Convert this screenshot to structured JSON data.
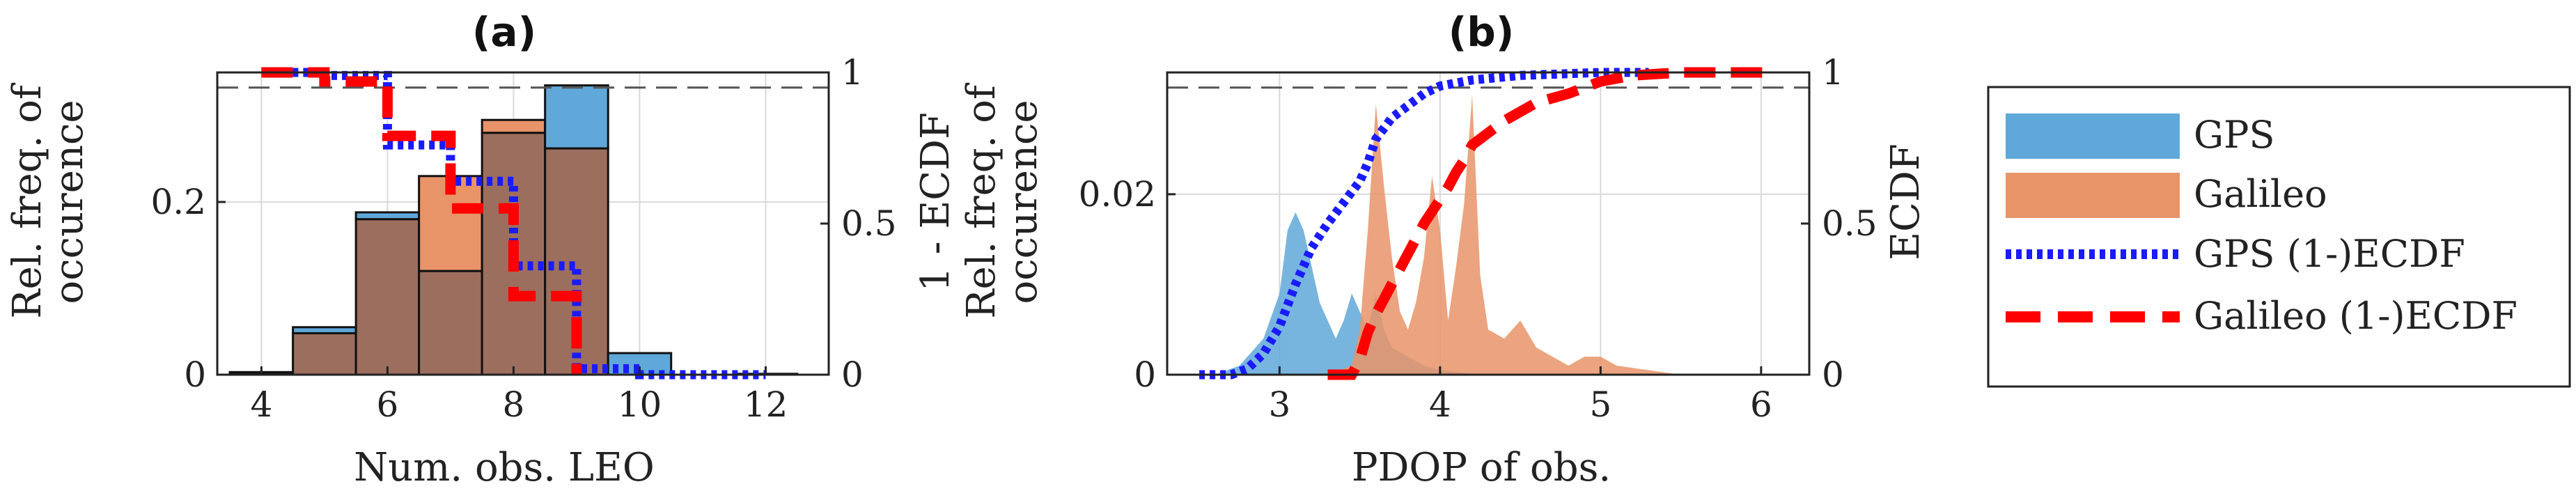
{
  "colors": {
    "gps": "#5fa8d9",
    "galileo": "#e89468",
    "overlap": "#9c6e5e",
    "gps_ecdf": "#1a1aff",
    "galileo_ecdf": "#ff0000"
  },
  "legend": {
    "items": [
      {
        "label": "GPS",
        "style": "patch-gps"
      },
      {
        "label": "Galileo",
        "style": "patch-galileo"
      },
      {
        "label": "GPS (1-)ECDF",
        "style": "line-gps"
      },
      {
        "label": "Galileo (1-)ECDF",
        "style": "line-galileo"
      }
    ]
  },
  "chart_data": [
    {
      "type": "bar",
      "title": "(a)",
      "xlabel": "Num. obs. LEO",
      "ylabel_left": [
        "Rel. freq. of",
        "occurence"
      ],
      "ylabel_right": "1 - ECDF",
      "xlim": [
        3.3,
        13
      ],
      "ylim": [
        0,
        0.35
      ],
      "ylim_right": [
        0,
        1
      ],
      "xticks": [
        4,
        6,
        8,
        10,
        12
      ],
      "yticks_left": [
        {
          "v": 0,
          "label": "0"
        },
        {
          "v": 0.2,
          "label": "0.2"
        }
      ],
      "yticks_right": [
        {
          "v": 0,
          "label": "0"
        },
        {
          "v": 0.5,
          "label": "0.5"
        },
        {
          "v": 1,
          "label": "1"
        }
      ],
      "dashed_reference": 0.95,
      "bin_edges": [
        3.5,
        4.5,
        5.5,
        6.5,
        7.5,
        8.5,
        9.5,
        10.5,
        11.5,
        12.5
      ],
      "series": [
        {
          "name": "GPS",
          "values": [
            0.003,
            0.055,
            0.188,
            0.12,
            0.28,
            0.335,
            0.025,
            0.0,
            0.001
          ]
        },
        {
          "name": "Galileo",
          "values": [
            0.002,
            0.048,
            0.18,
            0.23,
            0.295,
            0.262,
            0.0,
            0.0,
            0.0
          ]
        }
      ],
      "ecdf": [
        {
          "name": "GPS (1-)ECDF",
          "points": [
            [
              4.0,
              1.0
            ],
            [
              5.0,
              1.0
            ],
            [
              5.0,
              0.99
            ],
            [
              6.0,
              0.99
            ],
            [
              6.0,
              0.93
            ],
            [
              6.0,
              0.76
            ],
            [
              7.0,
              0.76
            ],
            [
              7.0,
              0.64
            ],
            [
              8.0,
              0.64
            ],
            [
              8.0,
              0.36
            ],
            [
              9.0,
              0.36
            ],
            [
              9.0,
              0.02
            ],
            [
              10.0,
              0.02
            ],
            [
              10.0,
              0.0
            ],
            [
              12.0,
              0.0
            ]
          ]
        },
        {
          "name": "Galileo (1-)ECDF",
          "points": [
            [
              4.0,
              1.0
            ],
            [
              5.0,
              1.0
            ],
            [
              5.0,
              0.97
            ],
            [
              6.0,
              0.97
            ],
            [
              6.0,
              0.79
            ],
            [
              7.0,
              0.79
            ],
            [
              7.0,
              0.55
            ],
            [
              8.0,
              0.55
            ],
            [
              8.0,
              0.26
            ],
            [
              9.0,
              0.26
            ],
            [
              9.0,
              0.0
            ]
          ]
        }
      ]
    },
    {
      "type": "area",
      "title": "(b)",
      "xlabel": "PDOP of obs.",
      "ylabel_left": [
        "Rel. freq. of",
        "occurence"
      ],
      "ylabel_right": "ECDF",
      "xlim": [
        2.3,
        6.3
      ],
      "ylim": [
        0,
        0.0335
      ],
      "ylim_right": [
        0,
        1
      ],
      "xticks": [
        3,
        4,
        5,
        6
      ],
      "yticks_left": [
        {
          "v": 0,
          "label": "0"
        },
        {
          "v": 0.02,
          "label": "0.02"
        }
      ],
      "yticks_right": [
        {
          "v": 0,
          "label": "0"
        },
        {
          "v": 0.5,
          "label": "0.5"
        },
        {
          "v": 1,
          "label": "1"
        }
      ],
      "dashed_reference": 0.95,
      "series": [
        {
          "name": "GPS",
          "x": [
            2.6,
            2.75,
            2.9,
            3.0,
            3.05,
            3.1,
            3.15,
            3.2,
            3.25,
            3.3,
            3.35,
            3.4,
            3.45,
            3.5,
            3.55,
            3.6,
            3.65,
            3.7,
            3.8,
            3.9,
            4.0,
            4.1,
            4.2,
            4.4
          ],
          "values": [
            0.0,
            0.001,
            0.004,
            0.009,
            0.016,
            0.018,
            0.016,
            0.012,
            0.008,
            0.006,
            0.004,
            0.006,
            0.009,
            0.007,
            0.005,
            0.009,
            0.005,
            0.003,
            0.002,
            0.001,
            0.0005,
            0.0003,
            0.0001,
            0.0
          ]
        },
        {
          "name": "Galileo",
          "x": [
            3.3,
            3.45,
            3.5,
            3.55,
            3.6,
            3.65,
            3.7,
            3.75,
            3.8,
            3.85,
            3.9,
            3.95,
            4.0,
            4.05,
            4.1,
            4.15,
            4.2,
            4.25,
            4.3,
            4.4,
            4.5,
            4.6,
            4.7,
            4.8,
            4.9,
            5.0,
            5.1,
            5.3,
            5.5
          ],
          "values": [
            0.0,
            0.001,
            0.005,
            0.016,
            0.03,
            0.021,
            0.013,
            0.007,
            0.005,
            0.008,
            0.013,
            0.022,
            0.016,
            0.006,
            0.012,
            0.019,
            0.031,
            0.011,
            0.005,
            0.004,
            0.006,
            0.003,
            0.002,
            0.001,
            0.002,
            0.002,
            0.001,
            0.0005,
            0.0
          ]
        }
      ],
      "ecdf": [
        {
          "name": "GPS (1-)ECDF",
          "points": [
            [
              2.5,
              0.0
            ],
            [
              2.7,
              0.0
            ],
            [
              2.8,
              0.02
            ],
            [
              2.9,
              0.07
            ],
            [
              3.0,
              0.16
            ],
            [
              3.1,
              0.3
            ],
            [
              3.2,
              0.42
            ],
            [
              3.3,
              0.5
            ],
            [
              3.4,
              0.57
            ],
            [
              3.5,
              0.64
            ],
            [
              3.55,
              0.7
            ],
            [
              3.6,
              0.78
            ],
            [
              3.7,
              0.85
            ],
            [
              3.8,
              0.89
            ],
            [
              3.9,
              0.93
            ],
            [
              4.0,
              0.955
            ],
            [
              4.2,
              0.975
            ],
            [
              4.5,
              0.99
            ],
            [
              5.0,
              1.0
            ],
            [
              5.3,
              1.0
            ]
          ]
        },
        {
          "name": "Galileo (1-)ECDF",
          "points": [
            [
              3.3,
              0.0
            ],
            [
              3.45,
              0.0
            ],
            [
              3.5,
              0.05
            ],
            [
              3.55,
              0.14
            ],
            [
              3.6,
              0.2
            ],
            [
              3.7,
              0.3
            ],
            [
              3.8,
              0.4
            ],
            [
              3.9,
              0.5
            ],
            [
              4.0,
              0.58
            ],
            [
              4.05,
              0.62
            ],
            [
              4.1,
              0.67
            ],
            [
              4.15,
              0.71
            ],
            [
              4.2,
              0.76
            ],
            [
              4.3,
              0.8
            ],
            [
              4.4,
              0.84
            ],
            [
              4.5,
              0.87
            ],
            [
              4.6,
              0.9
            ],
            [
              4.8,
              0.93
            ],
            [
              5.0,
              0.97
            ],
            [
              5.2,
              0.99
            ],
            [
              5.5,
              1.0
            ],
            [
              6.1,
              1.0
            ]
          ]
        }
      ]
    }
  ]
}
